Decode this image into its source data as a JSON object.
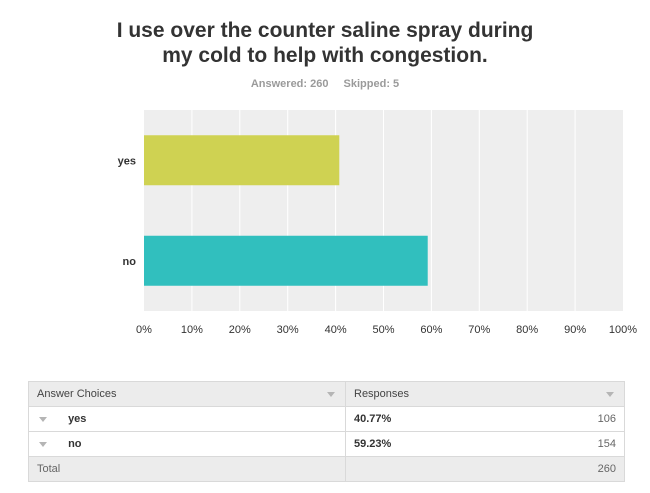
{
  "question": {
    "title_line1": "I use over the counter saline spray during",
    "title_line2": "my cold to help with congestion.",
    "answered_text": "Answered: 260",
    "skipped_text": "Skipped: 5"
  },
  "colors": {
    "yes": "#cfd252",
    "no": "#31bfbe",
    "plot_bg": "#eeeeee",
    "grid": "#ffffff"
  },
  "chart_data": {
    "type": "bar",
    "orientation": "horizontal",
    "categories": [
      "yes",
      "no"
    ],
    "values": [
      40.77,
      59.23
    ],
    "unit": "%",
    "xlim": [
      0,
      100
    ],
    "x_ticks": [
      "0%",
      "10%",
      "20%",
      "30%",
      "40%",
      "50%",
      "60%",
      "70%",
      "80%",
      "90%",
      "100%"
    ],
    "grid": true,
    "legend": "none"
  },
  "table": {
    "header_choices": "Answer Choices",
    "header_responses": "Responses",
    "rows": [
      {
        "label": "yes",
        "percent": "40.77%",
        "count": "106"
      },
      {
        "label": "no",
        "percent": "59.23%",
        "count": "154"
      }
    ],
    "total_label": "Total",
    "total_count": "260"
  }
}
